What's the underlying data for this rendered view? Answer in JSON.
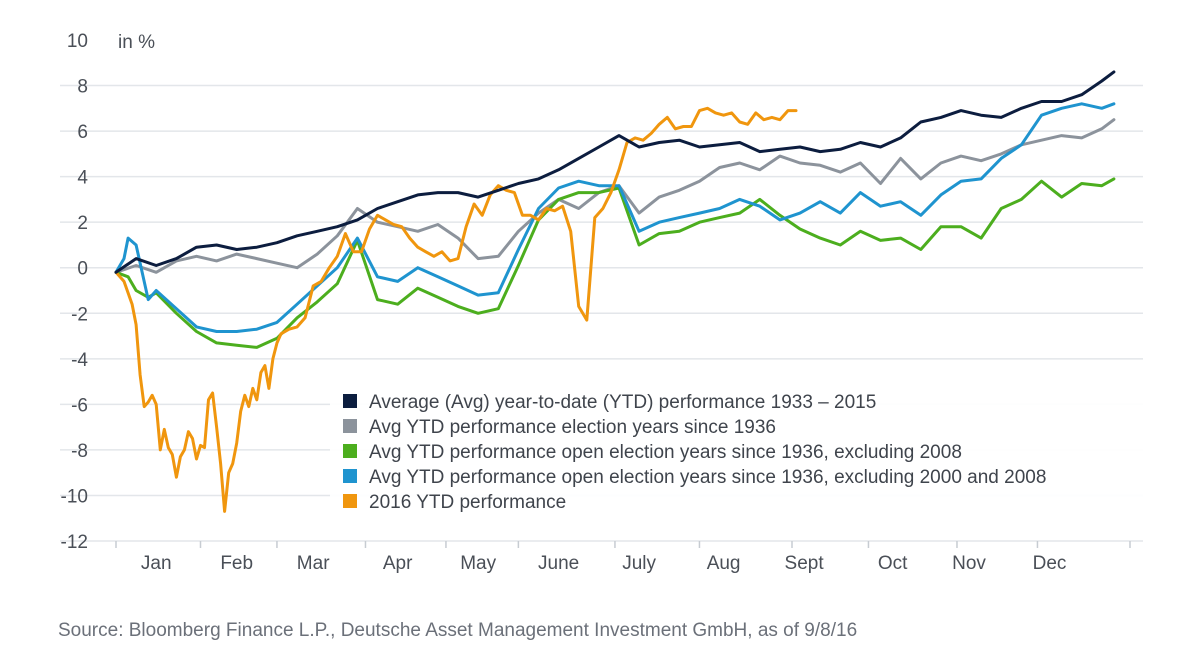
{
  "source_text": "Source: Bloomberg Finance L.P., Deutsche Asset Management Investment GmbH, as of 9/8/16",
  "chart_data": {
    "type": "line",
    "unit_label": "in %",
    "xlabel": "",
    "ylabel": "",
    "ylim": [
      -12,
      10
    ],
    "xlim": [
      0,
      252
    ],
    "yticks": [
      10,
      8,
      6,
      4,
      2,
      0,
      -2,
      -4,
      -6,
      -8,
      -10,
      -12
    ],
    "xticks": [
      {
        "label": "Jan",
        "x": 10
      },
      {
        "label": "Feb",
        "x": 30
      },
      {
        "label": "Mar",
        "x": 49
      },
      {
        "label": "Apr",
        "x": 70
      },
      {
        "label": "May",
        "x": 90
      },
      {
        "label": "June",
        "x": 110
      },
      {
        "label": "July",
        "x": 130
      },
      {
        "label": "Aug",
        "x": 151
      },
      {
        "label": "Sept",
        "x": 171
      },
      {
        "label": "Oct",
        "x": 193
      },
      {
        "label": "Nov",
        "x": 212
      },
      {
        "label": "Dec",
        "x": 232
      }
    ],
    "month_boundaries": [
      0,
      21,
      40,
      62,
      82,
      100,
      124,
      145,
      168,
      187,
      209,
      229,
      252
    ],
    "grid": "horizontal",
    "legend_position": "lower-center",
    "series": [
      {
        "name": "Average (Avg) year-to-date (YTD) performance 1933 – 2015",
        "color": "#0c1d3f",
        "x": [
          0,
          5,
          10,
          15,
          20,
          25,
          30,
          35,
          40,
          45,
          50,
          55,
          60,
          65,
          70,
          75,
          80,
          85,
          90,
          95,
          100,
          105,
          110,
          115,
          120,
          125,
          130,
          135,
          140,
          145,
          150,
          155,
          160,
          165,
          170,
          175,
          180,
          185,
          190,
          195,
          200,
          205,
          210,
          215,
          220,
          225,
          230,
          235,
          240,
          245,
          248
        ],
        "values": [
          -0.2,
          0.4,
          0.1,
          0.4,
          0.9,
          1.0,
          0.8,
          0.9,
          1.1,
          1.4,
          1.6,
          1.8,
          2.1,
          2.6,
          2.9,
          3.2,
          3.3,
          3.3,
          3.1,
          3.4,
          3.7,
          3.9,
          4.3,
          4.8,
          5.3,
          5.8,
          5.3,
          5.5,
          5.6,
          5.3,
          5.4,
          5.5,
          5.1,
          5.2,
          5.3,
          5.1,
          5.2,
          5.5,
          5.3,
          5.7,
          6.4,
          6.6,
          6.9,
          6.7,
          6.6,
          7.0,
          7.3,
          7.3,
          7.6,
          8.2,
          8.6
        ]
      },
      {
        "name": "Avg YTD performance election years since 1936",
        "color": "#8c939c",
        "x": [
          0,
          5,
          10,
          15,
          20,
          25,
          30,
          35,
          40,
          45,
          50,
          55,
          60,
          65,
          70,
          75,
          80,
          85,
          90,
          95,
          100,
          105,
          110,
          115,
          120,
          125,
          130,
          135,
          140,
          145,
          150,
          155,
          160,
          165,
          170,
          175,
          180,
          185,
          190,
          195,
          200,
          205,
          210,
          215,
          220,
          225,
          230,
          235,
          240,
          245,
          248
        ],
        "values": [
          -0.2,
          0.1,
          -0.2,
          0.3,
          0.5,
          0.3,
          0.6,
          0.4,
          0.2,
          0.0,
          0.6,
          1.4,
          2.6,
          2.0,
          1.8,
          1.6,
          1.9,
          1.3,
          0.4,
          0.5,
          1.6,
          2.4,
          3.0,
          2.6,
          3.3,
          3.6,
          2.4,
          3.1,
          3.4,
          3.8,
          4.4,
          4.6,
          4.3,
          4.9,
          4.6,
          4.5,
          4.2,
          4.6,
          3.7,
          4.8,
          3.9,
          4.6,
          4.9,
          4.7,
          5.0,
          5.4,
          5.6,
          5.8,
          5.7,
          6.1,
          6.5
        ]
      },
      {
        "name": "Avg YTD performance open election years since 1936, excluding 2008",
        "color": "#4cae1e",
        "x": [
          0,
          3,
          5,
          8,
          10,
          15,
          20,
          25,
          30,
          35,
          40,
          45,
          50,
          55,
          60,
          65,
          70,
          75,
          80,
          85,
          90,
          95,
          100,
          105,
          110,
          115,
          120,
          125,
          130,
          135,
          140,
          145,
          150,
          155,
          160,
          165,
          170,
          175,
          180,
          185,
          190,
          195,
          200,
          205,
          210,
          215,
          220,
          225,
          230,
          235,
          240,
          245,
          248
        ],
        "values": [
          -0.2,
          -0.4,
          -1.0,
          -1.3,
          -1.1,
          -2.0,
          -2.8,
          -3.3,
          -3.4,
          -3.5,
          -3.1,
          -2.2,
          -1.5,
          -0.7,
          1.2,
          -1.4,
          -1.6,
          -0.9,
          -1.3,
          -1.7,
          -2.0,
          -1.8,
          0.1,
          2.1,
          3.0,
          3.3,
          3.3,
          3.5,
          1.0,
          1.5,
          1.6,
          2.0,
          2.2,
          2.4,
          3.0,
          2.3,
          1.7,
          1.3,
          1.0,
          1.6,
          1.2,
          1.3,
          0.8,
          1.8,
          1.8,
          1.3,
          2.6,
          3.0,
          3.8,
          3.1,
          3.7,
          3.6,
          3.9
        ]
      },
      {
        "name": "Avg YTD performance open election years since 1936, excluding 2000 and 2008",
        "color": "#1f94cf",
        "x": [
          0,
          2,
          3,
          5,
          8,
          10,
          15,
          20,
          25,
          30,
          35,
          40,
          45,
          50,
          55,
          60,
          65,
          70,
          75,
          80,
          85,
          90,
          95,
          100,
          105,
          110,
          115,
          120,
          125,
          130,
          135,
          140,
          145,
          150,
          155,
          160,
          165,
          170,
          175,
          180,
          185,
          190,
          195,
          200,
          205,
          210,
          215,
          220,
          225,
          230,
          235,
          240,
          245,
          248
        ],
        "values": [
          -0.2,
          0.4,
          1.3,
          1.0,
          -1.4,
          -1.0,
          -1.8,
          -2.6,
          -2.8,
          -2.8,
          -2.7,
          -2.4,
          -1.6,
          -0.8,
          0.0,
          1.3,
          -0.4,
          -0.6,
          0.0,
          -0.4,
          -0.8,
          -1.2,
          -1.1,
          0.8,
          2.6,
          3.5,
          3.8,
          3.6,
          3.6,
          1.6,
          2.0,
          2.2,
          2.4,
          2.6,
          3.0,
          2.7,
          2.1,
          2.4,
          2.9,
          2.4,
          3.3,
          2.7,
          2.9,
          2.3,
          3.2,
          3.8,
          3.9,
          4.8,
          5.4,
          6.7,
          7.0,
          7.2,
          7.0,
          7.2
        ]
      },
      {
        "name": "2016 YTD performance",
        "color": "#f0960e",
        "x": [
          0,
          2,
          4,
          5,
          6,
          7,
          8,
          9,
          10,
          11,
          12,
          13,
          14,
          15,
          16,
          17,
          18,
          19,
          20,
          21,
          22,
          23,
          24,
          25,
          26,
          27,
          28,
          29,
          30,
          31,
          32,
          33,
          34,
          35,
          36,
          37,
          38,
          39,
          40,
          41,
          43,
          45,
          47,
          49,
          51,
          53,
          55,
          57,
          59,
          61,
          63,
          65,
          67,
          69,
          71,
          73,
          75,
          77,
          79,
          81,
          83,
          85,
          87,
          89,
          91,
          93,
          95,
          97,
          99,
          101,
          103,
          105,
          107,
          109,
          111,
          113,
          115,
          117,
          119,
          121,
          123,
          125,
          127,
          129,
          131,
          133,
          135,
          137,
          139,
          141,
          143,
          145,
          147,
          149,
          151,
          153,
          155,
          157,
          159,
          161,
          163,
          165,
          167,
          169
        ],
        "values": [
          -0.2,
          -0.6,
          -1.6,
          -2.5,
          -4.7,
          -6.1,
          -5.9,
          -5.6,
          -6.0,
          -8.0,
          -7.1,
          -7.9,
          -8.2,
          -9.2,
          -8.3,
          -8.0,
          -7.2,
          -7.5,
          -8.4,
          -7.8,
          -7.9,
          -5.8,
          -5.5,
          -7.0,
          -8.6,
          -10.7,
          -9.0,
          -8.6,
          -7.7,
          -6.3,
          -5.6,
          -6.1,
          -5.3,
          -5.8,
          -4.6,
          -4.3,
          -5.3,
          -4.0,
          -3.3,
          -2.9,
          -2.7,
          -2.6,
          -2.2,
          -0.8,
          -0.6,
          0.0,
          0.5,
          1.5,
          0.7,
          0.7,
          1.7,
          2.3,
          2.1,
          1.9,
          1.8,
          1.3,
          0.9,
          0.7,
          0.5,
          0.7,
          0.3,
          0.4,
          1.8,
          2.8,
          2.3,
          3.2,
          3.6,
          3.4,
          3.3,
          2.3,
          2.3,
          2.1,
          2.6,
          2.5,
          2.7,
          1.6,
          -1.7,
          -2.3,
          2.2,
          2.6,
          3.3,
          4.3,
          5.5,
          5.7,
          5.6,
          5.9,
          6.3,
          6.6,
          6.1,
          6.2,
          6.2,
          6.9,
          7.0,
          6.8,
          6.7,
          6.8,
          6.4,
          6.3,
          6.8,
          6.5,
          6.6,
          6.5,
          6.9,
          6.9
        ]
      }
    ]
  }
}
